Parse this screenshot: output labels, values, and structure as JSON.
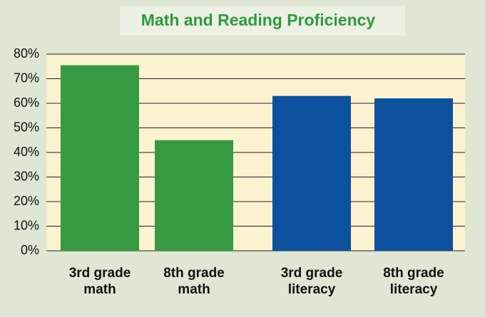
{
  "chart_data": {
    "type": "bar",
    "title": "Math and Reading Proficiency",
    "categories": [
      "3rd grade math",
      "8th grade math",
      "3rd grade literacy",
      "8th grade literacy"
    ],
    "values": [
      75.5,
      45,
      63,
      62
    ],
    "colors": [
      "#359a41",
      "#359a41",
      "#0b519e",
      "#0b519e"
    ],
    "ylim": [
      0,
      80
    ],
    "yticks": [
      {
        "value": 0,
        "label": "0%"
      },
      {
        "value": 10,
        "label": "10%"
      },
      {
        "value": 20,
        "label": "20%"
      },
      {
        "value": 30,
        "label": "30%"
      },
      {
        "value": 40,
        "label": "40%"
      },
      {
        "value": 50,
        "label": "50%"
      },
      {
        "value": 60,
        "label": "60%"
      },
      {
        "value": 70,
        "label": "70%"
      },
      {
        "value": 80,
        "label": "80%"
      }
    ],
    "grid": true
  }
}
